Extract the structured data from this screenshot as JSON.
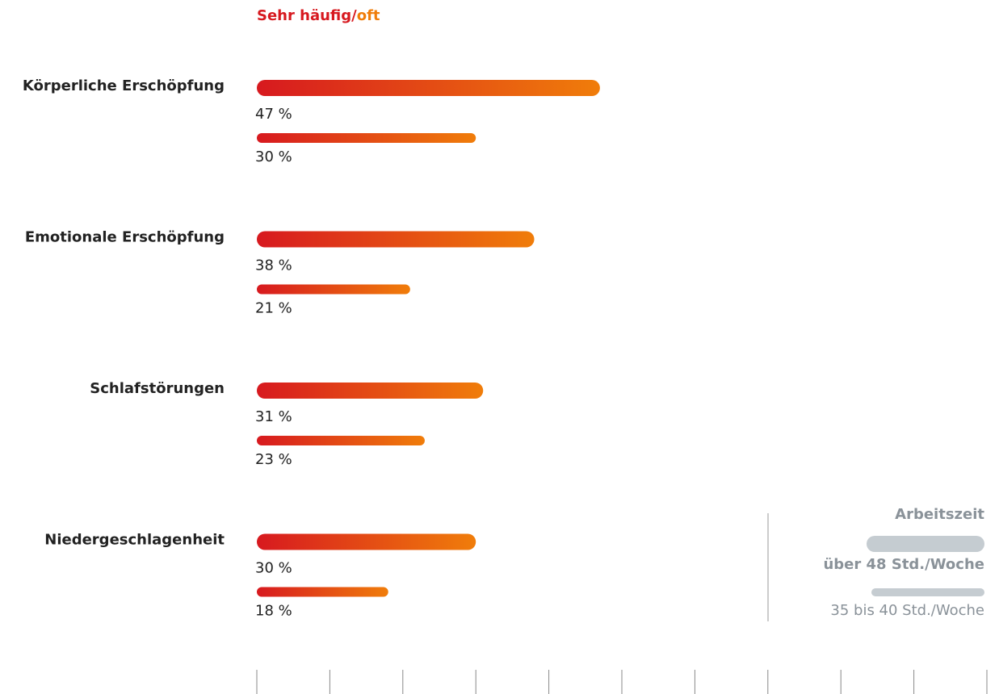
{
  "chart_data": {
    "type": "bar",
    "orientation": "horizontal",
    "title": [
      "Sehr häufig/",
      "oft"
    ],
    "title_colors": [
      "#d7191f",
      "#f07d0a"
    ],
    "categories": [
      "Körperliche Erschöpfung",
      "Emotionale Erschöpfung",
      "Schlafstörungen",
      "Niedergeschlagenheit"
    ],
    "series": [
      {
        "name": "über 48 Std./Woche",
        "color": "#c5ccd1",
        "values": [
          47,
          38,
          31,
          30
        ],
        "value_labels": [
          "47 %",
          "38 %",
          "31 %",
          "30 %"
        ]
      },
      {
        "name": "35 bis 40 Std./Woche",
        "color": "#c5ccd1",
        "values": [
          30,
          21,
          23,
          18
        ],
        "value_labels": [
          "30 %",
          "21 %",
          "23 %",
          "18 %"
        ]
      }
    ],
    "bar_gradient": [
      "#d7191f",
      "#f07d0a"
    ],
    "legend_title": "Arbeitszeit",
    "legend": "lower right",
    "xlim": [
      0,
      100
    ],
    "xticks": [
      0,
      10,
      20,
      30,
      40,
      50,
      60,
      70,
      80,
      90,
      100
    ]
  }
}
